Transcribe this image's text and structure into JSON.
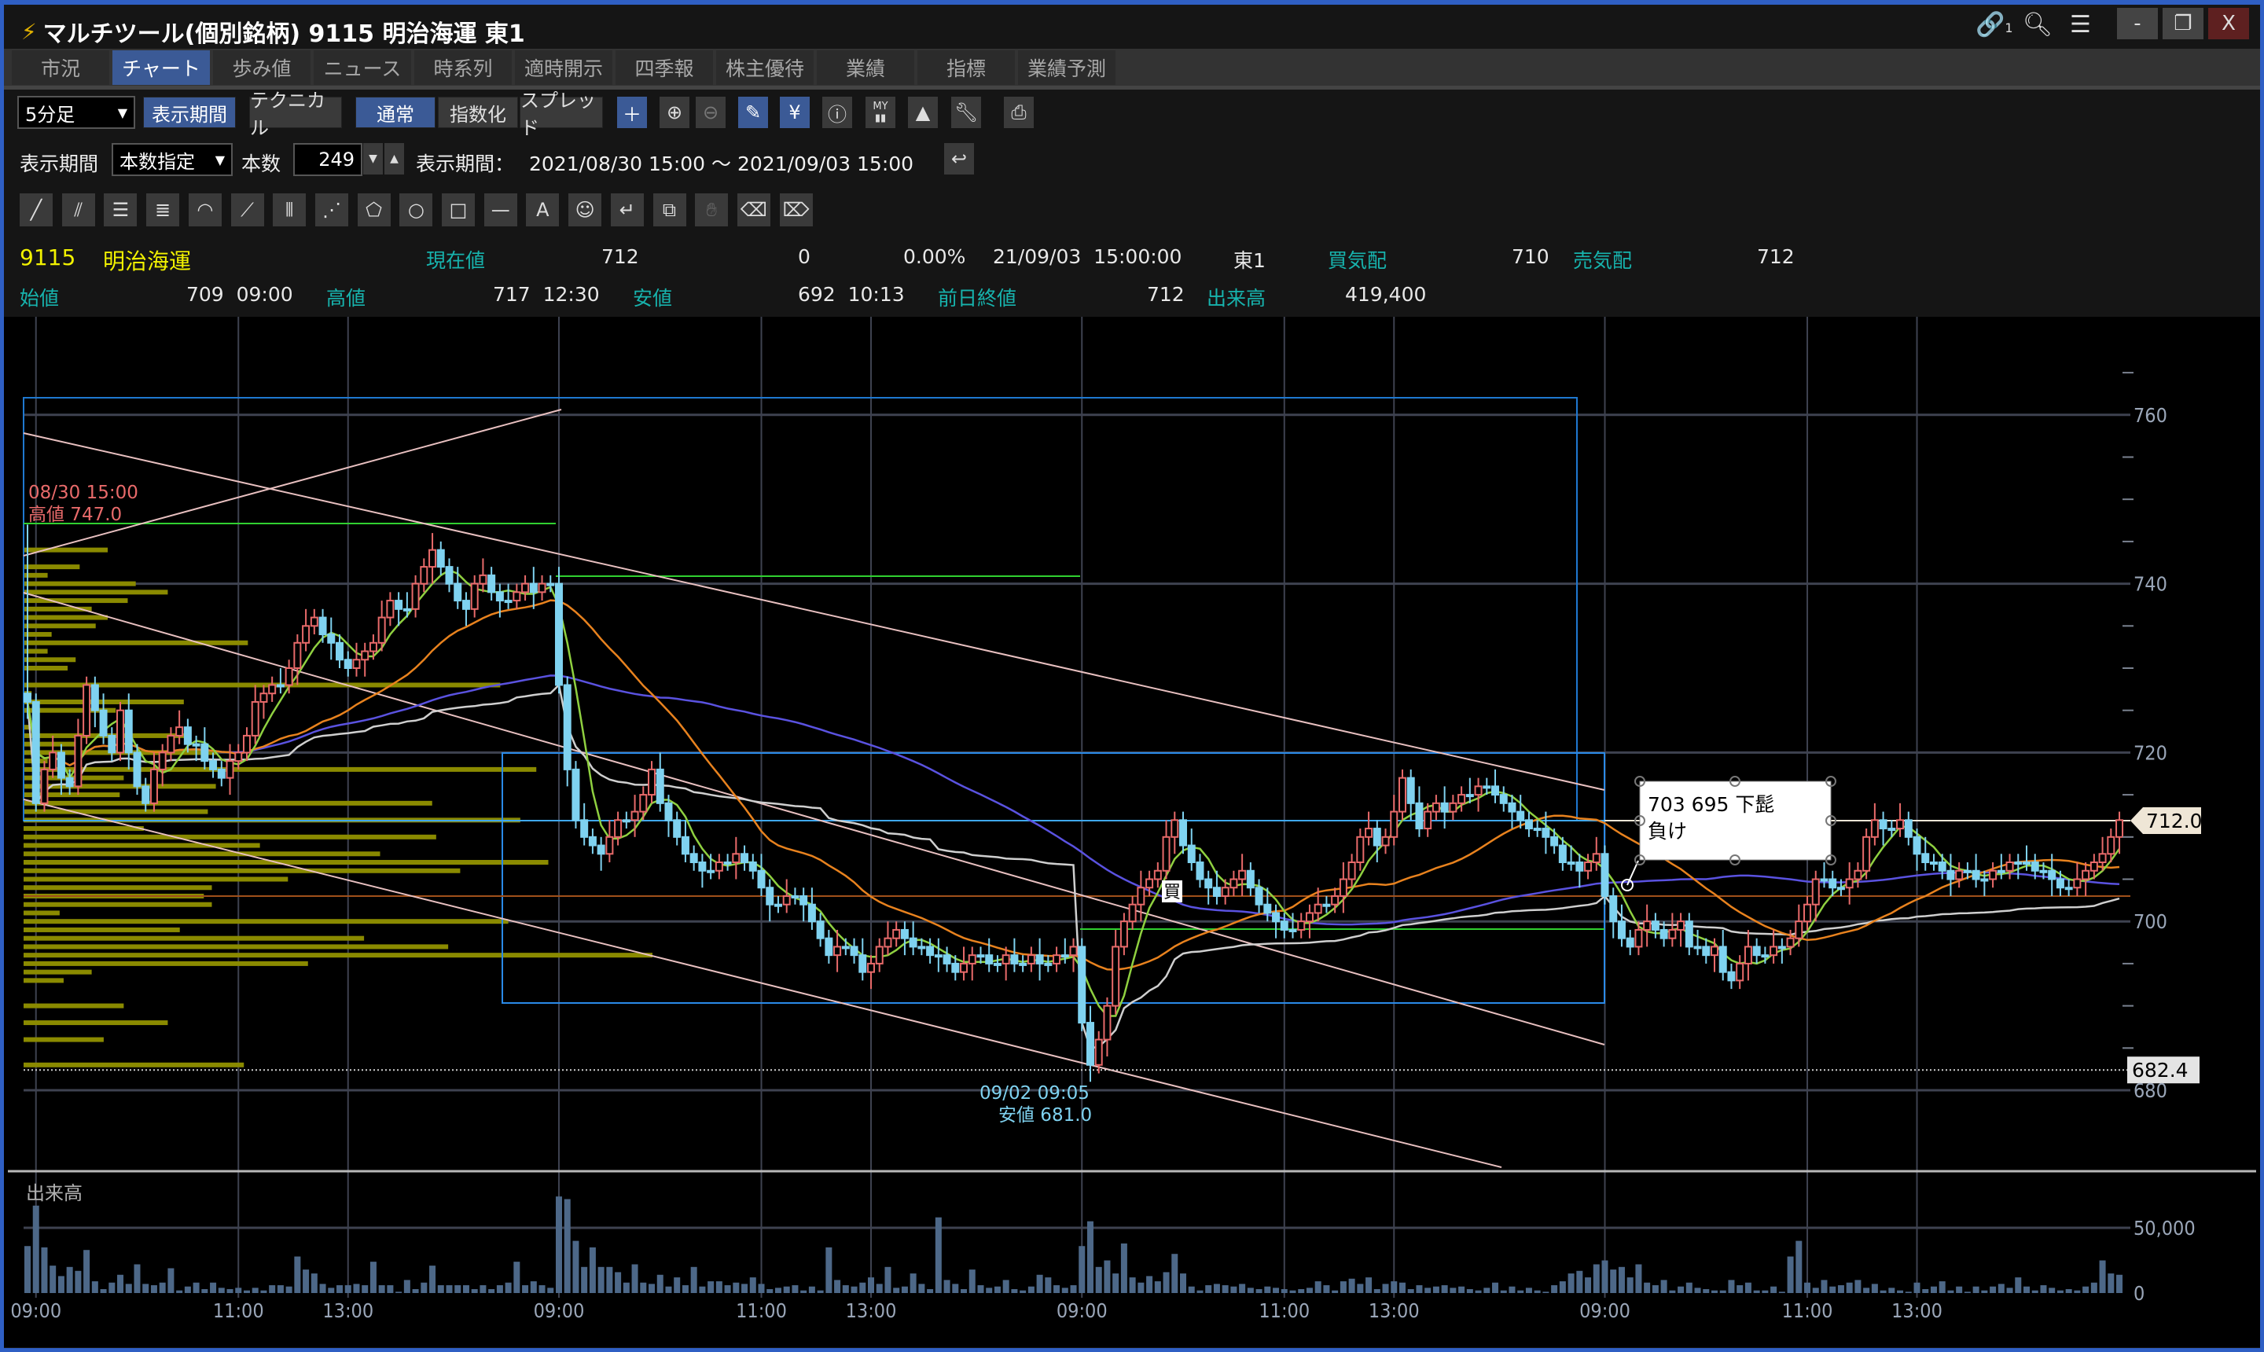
{
  "window": {
    "title": "マルチツール(個別銘柄) 9115 明治海運 東1",
    "link_badge": "1",
    "buttons": {
      "minimize": "-",
      "restore": "❐",
      "close": "X"
    }
  },
  "tabs": [
    {
      "label": "市況"
    },
    {
      "label": "チャート",
      "active": true
    },
    {
      "label": "歩み値"
    },
    {
      "label": "ニュース"
    },
    {
      "label": "時系列"
    },
    {
      "label": "適時開示"
    },
    {
      "label": "四季報"
    },
    {
      "label": "株主優待"
    },
    {
      "label": "業績"
    },
    {
      "label": "指標"
    },
    {
      "label": "業績予測"
    }
  ],
  "toolbar": {
    "interval": "5分足",
    "period_button": "表示期間",
    "technical_button": "テクニカル",
    "normal_button": "通常",
    "index_button": "指数化",
    "spread_button": "スプレッド",
    "my_icon_text": "MY"
  },
  "period": {
    "label": "表示期間",
    "mode": "本数指定",
    "count_label": "本数",
    "count": "249",
    "range_label": "表示期間：",
    "range": "2021/08/30 15:00 ～ 2021/09/03 15:00"
  },
  "drawing_tools": [
    "line",
    "parallel-lines",
    "horizontal-lines",
    "fibonacci-lines",
    "fibonacci-arc",
    "fan",
    "vertical-lines",
    "pitchfork",
    "pentagon",
    "circle",
    "rectangle",
    "horizontal-line",
    "text",
    "icon-stamp",
    "cursor-link",
    "copy",
    "hand",
    "eraser",
    "eraser-all"
  ],
  "quote": {
    "code": "9115",
    "name": "明治海運",
    "current_label": "現在値",
    "current": "712",
    "change": "0",
    "change_pct": "0.00%",
    "timestamp": "21/09/03  15:00:00",
    "market": "東1",
    "bid_label": "買気配",
    "bid": "710",
    "ask_label": "売気配",
    "ask": "712",
    "open_label": "始値",
    "open": "709  09:00",
    "high_label": "高値",
    "high": "717  12:30",
    "low_label": "安値",
    "low": "692  10:13",
    "prev_close_label": "前日終値",
    "prev_close": "712",
    "volume_label": "出来高",
    "volume": "419,400"
  },
  "chart_data": {
    "type": "candlestick",
    "interval": "5min",
    "y_ticks": [
      760,
      740,
      720,
      700,
      680
    ],
    "y_tick_labels": [
      "760",
      "740",
      "720",
      "700",
      "680"
    ],
    "ylim": [
      674,
      770
    ],
    "x_tick_labels": [
      "09:00",
      "11:00",
      "13:00",
      "09:00",
      "11:00",
      "13:00",
      "09:00",
      "11:00",
      "13:00",
      "09:00",
      "11:00",
      "13:00"
    ],
    "volume_label": "出来高",
    "volume_ticks": [
      50000,
      0
    ],
    "volume_tick_labels": [
      "50,000",
      "0"
    ],
    "colors": {
      "up": "#e86a6a",
      "down": "#7fd2f0",
      "sma_short": "#8fd040",
      "sma_mid": "#e8821e",
      "sma_long": "#5a52e0",
      "vwap": "#cfcfcf",
      "volume": "#4d6888"
    },
    "first_candle": {
      "time": "08/30 15:00",
      "close": 726,
      "volume": 36000
    },
    "days": [
      {
        "date": "08/31",
        "closes": [
          714,
          718,
          720,
          717,
          716,
          722,
          728,
          725,
          722,
          720,
          725,
          720,
          716,
          714,
          718,
          720,
          722,
          723,
          721,
          721,
          719,
          718,
          717,
          719,
          720,
          722,
          726,
          727,
          728,
          728,
          730,
          733,
          735,
          736,
          734,
          733,
          731,
          730,
          731,
          732,
          733,
          736,
          738,
          737,
          737,
          740,
          742,
          744,
          742,
          740,
          738,
          737,
          740,
          741,
          739,
          738,
          738,
          739,
          740,
          739,
          740,
          740
        ],
        "volumes": [
          67000,
          35000,
          21000,
          13000,
          20000,
          17000,
          33000,
          9000,
          3000,
          8000,
          14000,
          7000,
          22000,
          7000,
          6000,
          8000,
          19000,
          2000,
          5000,
          8000,
          3000,
          8000,
          4000,
          3000,
          4000,
          2000,
          4000,
          2000,
          6000,
          6000,
          5000,
          28000,
          18000,
          15000,
          7000,
          4000,
          6000,
          6000,
          7000,
          6000,
          24000,
          6000,
          6000,
          1000,
          10000,
          3000,
          8000,
          21000,
          6000,
          6000,
          6000,
          6000,
          3000,
          6000,
          3000,
          6000,
          8000,
          24000,
          6000,
          9000,
          6000,
          4000
        ]
      },
      {
        "date": "09/01",
        "closes": [
          728,
          718,
          712,
          710,
          709,
          708,
          710,
          712,
          712,
          713,
          715,
          718,
          714,
          712,
          710,
          708,
          707,
          706,
          706,
          707,
          707,
          708,
          707,
          706,
          704,
          702,
          702,
          703,
          703,
          702,
          700,
          698,
          696,
          697,
          697,
          696,
          694,
          695,
          697,
          698,
          699,
          698,
          697,
          697,
          696,
          696,
          695,
          694,
          695,
          696,
          696,
          695,
          695,
          696,
          695,
          695,
          696,
          695,
          695,
          696,
          696,
          697
        ],
        "volumes": [
          74000,
          72000,
          40000,
          20000,
          35000,
          20000,
          20000,
          16000,
          8000,
          22000,
          8000,
          7000,
          14000,
          5000,
          12000,
          6000,
          20000,
          5000,
          9000,
          9000,
          6000,
          8000,
          7000,
          12000,
          7000,
          3000,
          4000,
          5000,
          6000,
          2000,
          5000,
          2000,
          35000,
          10000,
          6000,
          5000,
          8000,
          12000,
          7000,
          20000,
          4000,
          5000,
          15000,
          7000,
          3000,
          58000,
          10000,
          7000,
          3000,
          18000,
          6000,
          4000,
          5000,
          10000,
          3000,
          2000,
          5000,
          14000,
          12000,
          6000,
          4000,
          6000
        ]
      },
      {
        "date": "09/02",
        "closes": [
          688,
          683,
          686,
          690,
          697,
          700,
          702,
          704,
          705,
          706,
          710,
          712,
          709,
          707,
          705,
          704,
          703,
          704,
          705,
          706,
          704,
          702,
          701,
          700,
          699,
          699,
          700,
          701,
          702,
          702,
          703,
          705,
          707,
          710,
          711,
          709,
          710,
          713,
          717,
          714,
          711,
          713,
          714,
          713,
          714,
          715,
          715,
          716,
          716,
          715,
          714,
          713,
          712,
          711,
          711,
          710,
          709,
          707,
          707,
          706,
          707,
          708
        ],
        "volumes": [
          36000,
          55000,
          20000,
          25000,
          15000,
          38000,
          12000,
          8000,
          13000,
          9000,
          16000,
          30000,
          15000,
          5000,
          2000,
          6000,
          7000,
          6000,
          5000,
          7000,
          4000,
          3000,
          5000,
          4000,
          3000,
          2000,
          3000,
          4000,
          9000,
          6000,
          2000,
          9000,
          11000,
          7000,
          12000,
          3000,
          7000,
          9000,
          8000,
          3000,
          6000,
          4000,
          5000,
          6000,
          4000,
          5000,
          3000,
          2000,
          4000,
          8000,
          2000,
          5000,
          2000,
          4000,
          2000,
          1000,
          6000,
          9000,
          15000,
          17000,
          12000,
          22000
        ]
      },
      {
        "date": "09/03",
        "closes": [
          703,
          700,
          698,
          697,
          699,
          700,
          699,
          698,
          699,
          700,
          697,
          697,
          696,
          697,
          694,
          693,
          695,
          697,
          696,
          696,
          697,
          697,
          698,
          700,
          702,
          705,
          705,
          704,
          704,
          705,
          706,
          710,
          712,
          711,
          711,
          712,
          710,
          708,
          707,
          707,
          706,
          705,
          706,
          706,
          705,
          705,
          706,
          706,
          707,
          707,
          707,
          706,
          706,
          705,
          704,
          704,
          705,
          706,
          707,
          708,
          710,
          712
        ],
        "volumes": [
          25000,
          18000,
          20000,
          12000,
          22000,
          8000,
          6000,
          10000,
          2000,
          5000,
          8000,
          4000,
          3000,
          2000,
          2000,
          10000,
          6000,
          8000,
          2000,
          2000,
          5000,
          1000,
          28000,
          40000,
          8000,
          4000,
          10000,
          5000,
          6000,
          8000,
          10000,
          4000,
          7000,
          2000,
          4000,
          2000,
          1000,
          8000,
          3000,
          5000,
          9000,
          2000,
          5000,
          1000,
          5000,
          2000,
          5000,
          7000,
          4000,
          12000,
          5000,
          2000,
          6000,
          4000,
          2000,
          3000,
          2000,
          5000,
          8000,
          25000,
          15000,
          14000
        ]
      }
    ],
    "annotations": {
      "high_time": "08/30 15:00",
      "high_text": "高値 747.0",
      "high_value": 747.0,
      "low_time": "09/02 09:05",
      "low_text": "安値 681.0",
      "low_value": 681.0,
      "buy_marker": "買",
      "note_line1": "703  695 下髭",
      "note_line2": "負け",
      "last_price_tag": "712.0",
      "level_tag": "682.4",
      "level_value": 682.4
    }
  }
}
